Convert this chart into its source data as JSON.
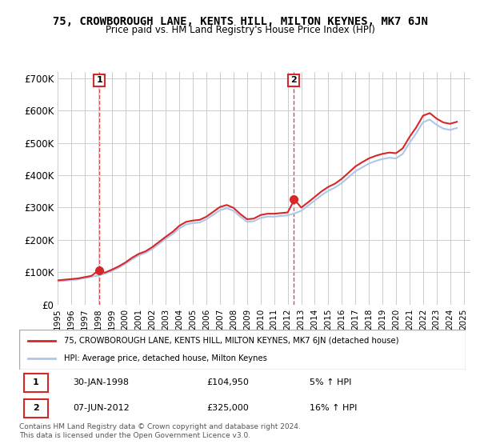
{
  "title": "75, CROWBOROUGH LANE, KENTS HILL, MILTON KEYNES, MK7 6JN",
  "subtitle": "Price paid vs. HM Land Registry's House Price Index (HPI)",
  "legend_line1": "75, CROWBOROUGH LANE, KENTS HILL, MILTON KEYNES, MK7 6JN (detached house)",
  "legend_line2": "HPI: Average price, detached house, Milton Keynes",
  "sale1_label": "1",
  "sale1_date": "30-JAN-1998",
  "sale1_price": "£104,950",
  "sale1_hpi": "5% ↑ HPI",
  "sale1_x": 1998.08,
  "sale1_y": 104950,
  "sale2_label": "2",
  "sale2_date": "07-JUN-2012",
  "sale2_price": "£325,000",
  "sale2_hpi": "16% ↑ HPI",
  "sale2_x": 2012.44,
  "sale2_y": 325000,
  "ylim": [
    0,
    720000
  ],
  "xlim_start": 1995,
  "xlim_end": 2025.5,
  "ylabel_ticks": [
    0,
    100000,
    200000,
    300000,
    400000,
    500000,
    600000,
    700000
  ],
  "ylabel_labels": [
    "£0",
    "£100K",
    "£200K",
    "£300K",
    "£400K",
    "£500K",
    "£600K",
    "£700K"
  ],
  "hpi_color": "#aec6e8",
  "price_color": "#d62728",
  "sale_marker_color": "#d62728",
  "grid_color": "#cccccc",
  "footnote": "Contains HM Land Registry data © Crown copyright and database right 2024.\nThis data is licensed under the Open Government Licence v3.0.",
  "hpi_years": [
    1995.0,
    1995.5,
    1996.0,
    1996.5,
    1997.0,
    1997.5,
    1998.0,
    1998.5,
    1999.0,
    1999.5,
    2000.0,
    2000.5,
    2001.0,
    2001.5,
    2002.0,
    2002.5,
    2003.0,
    2003.5,
    2004.0,
    2004.5,
    2005.0,
    2005.5,
    2006.0,
    2006.5,
    2007.0,
    2007.5,
    2008.0,
    2008.5,
    2009.0,
    2009.5,
    2010.0,
    2010.5,
    2011.0,
    2011.5,
    2012.0,
    2012.5,
    2013.0,
    2013.5,
    2014.0,
    2014.5,
    2015.0,
    2015.5,
    2016.0,
    2016.5,
    2017.0,
    2017.5,
    2018.0,
    2018.5,
    2019.0,
    2019.5,
    2020.0,
    2020.5,
    2021.0,
    2021.5,
    2022.0,
    2022.5,
    2023.0,
    2023.5,
    2024.0,
    2024.5
  ],
  "hpi_values": [
    72000,
    74000,
    76000,
    78000,
    82000,
    86000,
    90000,
    96000,
    104000,
    114000,
    126000,
    140000,
    152000,
    160000,
    172000,
    188000,
    204000,
    218000,
    236000,
    248000,
    252000,
    254000,
    264000,
    278000,
    292000,
    298000,
    290000,
    272000,
    256000,
    258000,
    268000,
    272000,
    272000,
    274000,
    276000,
    282000,
    290000,
    306000,
    322000,
    338000,
    352000,
    362000,
    376000,
    394000,
    412000,
    424000,
    436000,
    444000,
    450000,
    454000,
    452000,
    466000,
    500000,
    530000,
    564000,
    572000,
    556000,
    544000,
    540000,
    546000
  ],
  "price_years": [
    1995.0,
    1995.5,
    1996.0,
    1996.5,
    1997.0,
    1997.5,
    1998.0,
    1998.5,
    1999.0,
    1999.5,
    2000.0,
    2000.5,
    2001.0,
    2001.5,
    2002.0,
    2002.5,
    2003.0,
    2003.5,
    2004.0,
    2004.5,
    2005.0,
    2005.5,
    2006.0,
    2006.5,
    2007.0,
    2007.5,
    2008.0,
    2008.5,
    2009.0,
    2009.5,
    2010.0,
    2010.5,
    2011.0,
    2011.5,
    2012.0,
    2012.5,
    2013.0,
    2013.5,
    2014.0,
    2014.5,
    2015.0,
    2015.5,
    2016.0,
    2016.5,
    2017.0,
    2017.5,
    2018.0,
    2018.5,
    2019.0,
    2019.5,
    2020.0,
    2020.5,
    2021.0,
    2021.5,
    2022.0,
    2022.5,
    2023.0,
    2023.5,
    2024.0,
    2024.5
  ],
  "price_values": [
    75000,
    77000,
    79000,
    81000,
    85000,
    89000,
    104950,
    99000,
    108000,
    118000,
    130000,
    145000,
    157000,
    165000,
    178000,
    194000,
    210000,
    225000,
    244000,
    256000,
    260000,
    262000,
    272000,
    287000,
    302000,
    308000,
    299000,
    280000,
    264000,
    266000,
    277000,
    281000,
    281000,
    283000,
    285000,
    325000,
    300000,
    316000,
    333000,
    350000,
    364000,
    374000,
    389000,
    408000,
    427000,
    440000,
    452000,
    460000,
    466000,
    470000,
    468000,
    483000,
    518000,
    548000,
    584000,
    592000,
    575000,
    563000,
    559000,
    565000
  ],
  "xtick_years": [
    1995,
    1996,
    1997,
    1998,
    1999,
    2000,
    2001,
    2002,
    2003,
    2004,
    2005,
    2006,
    2007,
    2008,
    2009,
    2010,
    2011,
    2012,
    2013,
    2014,
    2015,
    2016,
    2017,
    2018,
    2019,
    2020,
    2021,
    2022,
    2023,
    2024,
    2025
  ]
}
